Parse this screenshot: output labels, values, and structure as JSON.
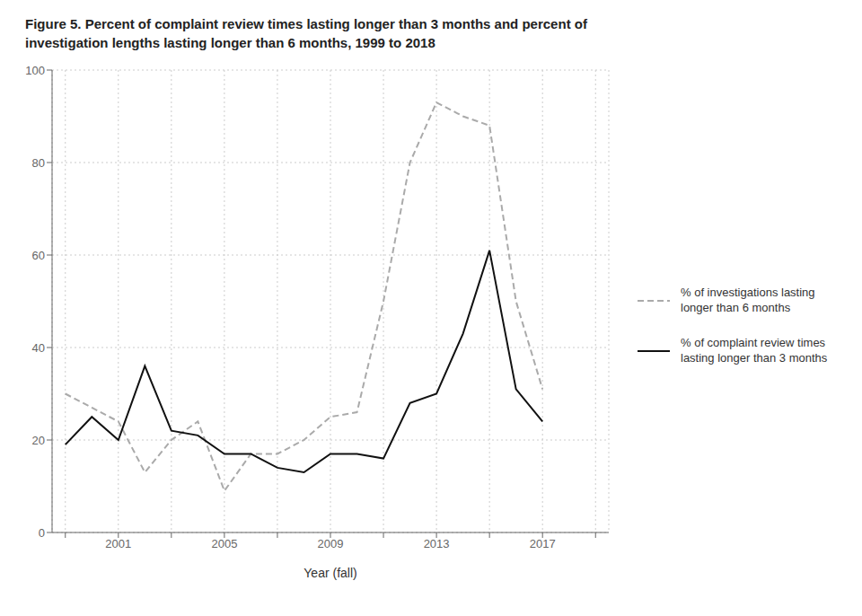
{
  "chart_data": {
    "type": "line",
    "title": "Figure 5. Percent of complaint review times lasting longer than 3 months and percent of\ninvestigation lengths lasting longer than 6 months, 1999 to 2018",
    "x_label": "Year (fall)",
    "x": [
      1999,
      2000,
      2001,
      2002,
      2003,
      2004,
      2005,
      2006,
      2007,
      2008,
      2009,
      2010,
      2011,
      2012,
      2013,
      2014,
      2015,
      2016,
      2017
    ],
    "series": [
      {
        "name": "% of investigations lasting\nlonger than 6 months",
        "color": "#aaaaaa",
        "line_style": "dashed",
        "values": [
          30,
          27,
          24,
          13,
          20,
          24,
          9,
          17,
          17,
          20,
          25,
          26,
          50,
          80,
          93,
          90,
          88,
          50,
          31
        ]
      },
      {
        "name": "% of complaint review times\nlasting longer than 3 months",
        "color": "#111111",
        "line_style": "solid",
        "values": [
          19,
          25,
          20,
          36,
          22,
          21,
          17,
          17,
          14,
          13,
          17,
          17,
          16,
          28,
          30,
          43,
          61,
          31,
          24
        ]
      }
    ],
    "xlim": [
      1998.5,
      2019.5
    ],
    "xticks": [
      {
        "value": 1999,
        "label": null
      },
      2001,
      {
        "value": 2003,
        "label": null
      },
      2005,
      {
        "value": 2007,
        "label": null
      },
      2009,
      {
        "value": 2011,
        "label": null
      },
      2013,
      {
        "value": 2015,
        "label": null
      },
      2017,
      {
        "value": 2019,
        "label": null
      }
    ],
    "ylim": [
      0,
      100
    ],
    "yticks": [
      0,
      20,
      40,
      60,
      80,
      100
    ],
    "grid": true,
    "legend": "right"
  }
}
